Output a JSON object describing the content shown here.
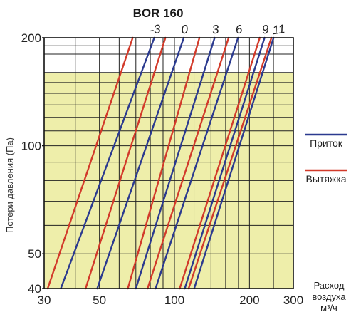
{
  "chart_data": {
    "type": "line",
    "title": "BOR 160",
    "ylabel": "Потери давления (Па)",
    "xlabel": [
      "Расход",
      "воздуха",
      "м³/ч"
    ],
    "xscale": "log",
    "yscale": "log",
    "xlim": [
      30,
      300
    ],
    "ylim": [
      40,
      200
    ],
    "x_ticks": [
      30,
      50,
      100,
      200,
      300
    ],
    "y_ticks": [
      40,
      50,
      100,
      200
    ],
    "shaded_region_below_y": 160,
    "shaded_color": "#eeeeaa",
    "grid": true,
    "legend": [
      {
        "label": "Приток",
        "color": "#2b3a8f"
      },
      {
        "label": "Вытяжка",
        "color": "#d23a2a"
      }
    ],
    "curve_labels": [
      "-3",
      "0",
      "3",
      "6",
      "9",
      "11"
    ],
    "series": [
      {
        "name": "Вытяжка",
        "setting": "-3",
        "color": "#d23a2a",
        "points": [
          [
            31,
            40
          ],
          [
            68,
            200
          ]
        ]
      },
      {
        "name": "Приток",
        "setting": "-3",
        "color": "#2b3a8f",
        "points": [
          [
            35,
            40
          ],
          [
            83,
            200
          ]
        ]
      },
      {
        "name": "Вытяжка",
        "setting": "0",
        "color": "#d23a2a",
        "points": [
          [
            44,
            40
          ],
          [
            92,
            200
          ]
        ]
      },
      {
        "name": "Приток",
        "setting": "0",
        "color": "#2b3a8f",
        "points": [
          [
            49,
            40
          ],
          [
            109,
            200
          ]
        ]
      },
      {
        "name": "Вытяжка",
        "setting": "3",
        "color": "#d23a2a",
        "points": [
          [
            65,
            40
          ],
          [
            126,
            200
          ]
        ]
      },
      {
        "name": "Приток",
        "setting": "3",
        "color": "#2b3a8f",
        "points": [
          [
            70,
            40
          ],
          [
            145,
            200
          ]
        ]
      },
      {
        "name": "Вытяжка",
        "setting": "6",
        "color": "#d23a2a",
        "points": [
          [
            78,
            40
          ],
          [
            165,
            200
          ]
        ]
      },
      {
        "name": "Приток",
        "setting": "6",
        "color": "#2b3a8f",
        "points": [
          [
            84,
            40
          ],
          [
            180,
            200
          ]
        ]
      },
      {
        "name": "Вытяжка",
        "setting": "9",
        "color": "#d23a2a",
        "points": [
          [
            105,
            40
          ],
          [
            220,
            200
          ]
        ]
      },
      {
        "name": "Приток",
        "setting": "9",
        "color": "#2b3a8f",
        "points": [
          [
            110,
            40
          ],
          [
            230,
            200
          ]
        ]
      },
      {
        "name": "Вытяжка",
        "setting": "11",
        "color": "#d23a2a",
        "points": [
          [
            114,
            40
          ],
          [
            245,
            200
          ]
        ]
      },
      {
        "name": "Приток",
        "setting": "11",
        "color": "#2b3a8f",
        "points": [
          [
            120,
            40
          ],
          [
            250,
            200
          ]
        ]
      }
    ]
  }
}
